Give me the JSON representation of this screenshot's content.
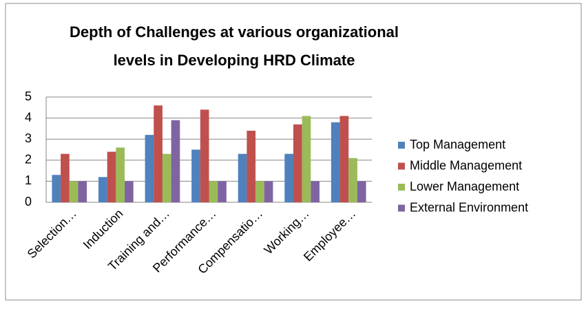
{
  "chart_data": {
    "type": "bar",
    "title": [
      "Depth of Challenges at various organizational",
      "levels in  Developing HRD Climate"
    ],
    "categories": [
      "Selection…",
      "Induction",
      "Training and…",
      "Performance…",
      "Compensatio…",
      "Working…",
      "Employee…"
    ],
    "series": [
      {
        "name": "Top Management",
        "color": "#4f81bd",
        "values": [
          1.3,
          1.2,
          3.2,
          2.5,
          2.3,
          2.3,
          3.8
        ]
      },
      {
        "name": "Middle Management",
        "color": "#c0504d",
        "values": [
          2.3,
          2.4,
          4.6,
          4.4,
          3.4,
          3.7,
          4.1
        ]
      },
      {
        "name": "Lower Management",
        "color": "#9bbb59",
        "values": [
          1.0,
          2.6,
          2.3,
          1.0,
          1.0,
          4.1,
          2.1
        ]
      },
      {
        "name": "External Environment",
        "color": "#8064a2",
        "values": [
          1.0,
          1.0,
          3.9,
          1.0,
          1.0,
          1.0,
          1.0
        ]
      }
    ],
    "ylim": [
      0,
      5
    ],
    "yticks": [
      0,
      1,
      2,
      3,
      4,
      5
    ],
    "grid": true,
    "legend": "right"
  }
}
